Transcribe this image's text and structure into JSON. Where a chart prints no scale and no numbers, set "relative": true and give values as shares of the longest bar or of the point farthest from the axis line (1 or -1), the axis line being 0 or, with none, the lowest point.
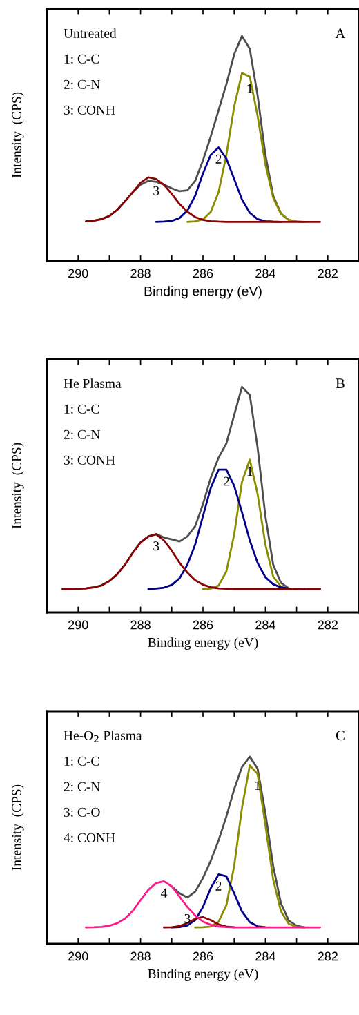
{
  "chart_data": [
    {
      "type": "line",
      "title": "A",
      "xlabel": "Binding energy (eV)",
      "ylabel": "Intensity  (CPS)",
      "relative": true,
      "xlim": [
        291,
        281
      ],
      "xticks": [
        290,
        {
          "value": 289,
          "label": null
        },
        288,
        {
          "value": 287,
          "label": null
        },
        286,
        {
          "value": 285,
          "label": null
        },
        284,
        {
          "value": 283,
          "label": null
        },
        282
      ],
      "x": [
        289.75,
        289.5,
        289.25,
        289,
        288.75,
        288.5,
        288.25,
        288,
        287.75,
        287.5,
        287.25,
        287,
        286.75,
        286.5,
        286.25,
        286,
        285.75,
        285.5,
        285.25,
        285,
        284.75,
        284.5,
        284.25,
        284,
        283.75,
        283.5,
        283.25,
        283,
        282.75,
        282.5,
        282.25
      ],
      "series": [
        {
          "color": "#4d4d4d",
          "values": [
            0.176,
            0.179,
            0.186,
            0.2,
            0.227,
            0.265,
            0.306,
            0.339,
            0.356,
            0.352,
            0.339,
            0.323,
            0.31,
            0.314,
            0.356,
            0.447,
            0.554,
            0.67,
            0.786,
            0.918,
            1.0,
            0.943,
            0.736,
            0.472,
            0.29,
            0.211,
            0.182,
            0.176,
            null,
            null,
            null
          ]
        },
        {
          "color": "#8c8c00",
          "values": [
            null,
            null,
            null,
            null,
            null,
            null,
            null,
            null,
            null,
            null,
            null,
            null,
            null,
            0.174,
            0.176,
            0.185,
            0.218,
            0.306,
            0.472,
            0.686,
            0.835,
            0.819,
            0.645,
            0.43,
            0.281,
            0.208,
            0.182,
            0.176,
            0.174,
            null,
            null
          ]
        },
        {
          "color": "#00008b",
          "values": [
            null,
            null,
            null,
            null,
            null,
            null,
            null,
            null,
            null,
            0.174,
            0.175,
            0.178,
            0.191,
            0.224,
            0.29,
            0.389,
            0.472,
            0.505,
            0.455,
            0.364,
            0.273,
            0.214,
            0.186,
            0.177,
            0.175,
            0.174,
            null,
            null,
            null,
            null,
            null
          ]
        },
        {
          "color": "#8b0000",
          "values": [
            0.176,
            0.179,
            0.186,
            0.2,
            0.227,
            0.265,
            0.306,
            0.348,
            0.372,
            0.364,
            0.339,
            0.298,
            0.253,
            0.219,
            0.195,
            0.183,
            0.177,
            0.175,
            0.174,
            0.174,
            0.174,
            0.174,
            0.174,
            0.174,
            0.174,
            0.174,
            0.174,
            0.174,
            0.174,
            0.174,
            0.174
          ]
        }
      ],
      "annotations": [
        "Untreated",
        "1: C-C",
        "2: C-N",
        "3: CONH",
        {
          "text": "1",
          "x": 284.5,
          "y": 0.819
        },
        {
          "text": "2",
          "x": 285.5,
          "y": 0.505
        },
        {
          "text": "3",
          "x": 287.5,
          "y": 0.364
        }
      ]
    },
    {
      "type": "line",
      "title": "B",
      "xlabel": "Binding energy (eV)",
      "ylabel": "Intensity  (CPS)",
      "relative": true,
      "xlim": [
        291,
        281
      ],
      "xticks": [
        290,
        {
          "value": 289,
          "label": null
        },
        288,
        {
          "value": 287,
          "label": null
        },
        286,
        {
          "value": 285,
          "label": null
        },
        284,
        {
          "value": 283,
          "label": null
        },
        282
      ],
      "x": [
        290.5,
        290.25,
        290,
        289.75,
        289.5,
        289.25,
        289,
        288.75,
        288.5,
        288.25,
        288,
        287.75,
        287.5,
        287.25,
        287,
        286.75,
        286.5,
        286.25,
        286,
        285.75,
        285.5,
        285.25,
        285,
        284.75,
        284.5,
        284.25,
        284,
        283.75,
        283.5,
        283.25,
        283,
        282.75,
        282.5,
        282.25
      ],
      "series": [
        {
          "color": "#4d4d4d",
          "values": [
            0.104,
            0.104,
            0.105,
            0.107,
            0.111,
            0.12,
            0.139,
            0.169,
            0.212,
            0.265,
            0.31,
            0.337,
            0.348,
            0.332,
            0.324,
            0.315,
            0.337,
            0.382,
            0.48,
            0.597,
            0.686,
            0.749,
            0.875,
            1.0,
            0.964,
            0.731,
            0.427,
            0.212,
            0.131,
            0.107,
            0.105,
            0.104,
            0.104,
            0.104
          ]
        },
        {
          "color": "#8c8c00",
          "values": [
            null,
            null,
            null,
            null,
            null,
            null,
            null,
            null,
            null,
            null,
            null,
            null,
            null,
            null,
            null,
            null,
            null,
            null,
            0.104,
            0.106,
            0.119,
            0.182,
            0.346,
            0.579,
            0.677,
            0.525,
            0.301,
            0.159,
            0.114,
            0.105,
            0.104,
            null,
            null,
            null
          ]
        },
        {
          "color": "#00008b",
          "values": [
            null,
            null,
            null,
            null,
            null,
            null,
            null,
            null,
            null,
            null,
            null,
            0.104,
            0.106,
            0.11,
            0.122,
            0.151,
            0.212,
            0.301,
            0.427,
            0.552,
            0.633,
            0.633,
            0.561,
            0.444,
            0.319,
            0.22,
            0.156,
            0.125,
            0.111,
            0.106,
            0.105,
            0.104,
            null,
            null
          ]
        },
        {
          "color": "#8b0000",
          "values": [
            0.104,
            0.104,
            0.105,
            0.107,
            0.111,
            0.12,
            0.139,
            0.169,
            0.212,
            0.265,
            0.31,
            0.337,
            0.346,
            0.319,
            0.274,
            0.22,
            0.177,
            0.143,
            0.123,
            0.112,
            0.107,
            0.105,
            0.104,
            0.104,
            0.104,
            0.104,
            0.104,
            0.104,
            0.104,
            0.104,
            0.104,
            0.104,
            0.104,
            0.104
          ]
        }
      ],
      "annotations": [
        "He Plasma",
        "1: C-C",
        "2: C-N",
        "3: CONH",
        {
          "text": "1",
          "x": 284.5,
          "y": 0.677
        },
        {
          "text": "2",
          "x": 285.25,
          "y": 0.633
        },
        {
          "text": "3",
          "x": 287.5,
          "y": 0.346
        }
      ]
    },
    {
      "type": "line",
      "title": "C",
      "xlabel": "Binding energy (eV)",
      "ylabel": "Intensity  (CPS)",
      "relative": true,
      "xlim": [
        291,
        281
      ],
      "xticks": [
        290,
        {
          "value": 289,
          "label": null
        },
        288,
        {
          "value": 287,
          "label": null
        },
        286,
        {
          "value": 285,
          "label": null
        },
        284,
        {
          "value": 283,
          "label": null
        },
        282
      ],
      "x": [
        289.75,
        289.5,
        289.25,
        289,
        288.75,
        288.5,
        288.25,
        288,
        287.75,
        287.5,
        287.25,
        287,
        286.75,
        286.5,
        286.25,
        286,
        285.75,
        285.5,
        285.25,
        285,
        284.75,
        284.5,
        284.25,
        284,
        283.75,
        283.5,
        283.25,
        283,
        282.75,
        282.5,
        282.25
      ],
      "series": [
        {
          "color": "#4d4d4d",
          "values": [
            null,
            null,
            null,
            null,
            null,
            null,
            null,
            null,
            null,
            null,
            null,
            0.307,
            0.27,
            0.248,
            0.279,
            0.352,
            0.444,
            0.553,
            0.681,
            0.826,
            0.945,
            1.0,
            0.936,
            0.699,
            0.416,
            0.216,
            0.124,
            0.097,
            0.088,
            null,
            null
          ]
        },
        {
          "color": "#8c8c00",
          "values": [
            null,
            null,
            null,
            null,
            null,
            null,
            null,
            null,
            null,
            null,
            null,
            null,
            null,
            null,
            0.088,
            0.089,
            0.093,
            0.118,
            0.207,
            0.416,
            0.726,
            0.954,
            0.908,
            0.635,
            0.343,
            0.173,
            0.107,
            0.091,
            0.088,
            null,
            null
          ]
        },
        {
          "color": "#00008b",
          "values": [
            null,
            null,
            null,
            null,
            null,
            null,
            null,
            null,
            null,
            null,
            null,
            0.088,
            0.09,
            0.098,
            0.127,
            0.197,
            0.298,
            0.371,
            0.361,
            0.27,
            0.173,
            0.116,
            0.094,
            0.089,
            null,
            null,
            null,
            null,
            null,
            null,
            null
          ]
        },
        {
          "color": "#8b0000",
          "values": [
            null,
            null,
            null,
            null,
            null,
            null,
            null,
            null,
            null,
            null,
            0.088,
            0.089,
            0.095,
            0.111,
            0.134,
            0.143,
            0.127,
            0.104,
            0.093,
            0.089,
            null,
            null,
            null,
            null,
            null,
            null,
            null,
            null,
            null,
            null,
            null
          ]
        },
        {
          "color": "#ff1a8c",
          "values": [
            0.088,
            0.089,
            0.091,
            0.097,
            0.11,
            0.135,
            0.176,
            0.234,
            0.289,
            0.325,
            0.334,
            0.307,
            0.252,
            0.197,
            0.152,
            0.119,
            0.102,
            0.093,
            0.09,
            0.088,
            0.088,
            0.088,
            0.088,
            0.088,
            0.088,
            0.088,
            0.088,
            0.088,
            0.088,
            0.088,
            0.088
          ]
        }
      ],
      "annotations": [
        "He-O$_{2}$ Plasma",
        "1: C-C",
        "2: C-N",
        "3: C-O",
        "4: CONH",
        {
          "text": "1",
          "x": 284.25,
          "y": 0.908
        },
        {
          "text": "2",
          "x": 285.5,
          "y": 0.371
        },
        {
          "text": "3",
          "x": 286.5,
          "y": 0.197
        },
        {
          "text": "4",
          "x": 287.25,
          "y": 0.334
        }
      ]
    }
  ]
}
